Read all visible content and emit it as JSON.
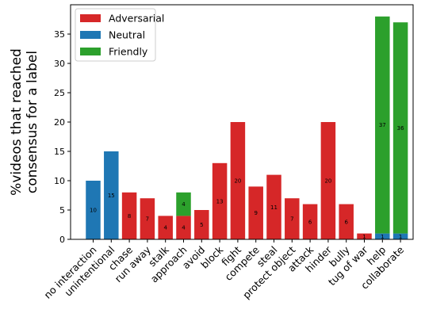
{
  "chart_data": {
    "type": "bar",
    "stacked": true,
    "title": "",
    "xlabel": "",
    "ylabel": "%videos that reached consensus for a label",
    "ylabel_lines": [
      "%videos that reached",
      "consensus for a label"
    ],
    "ylim": [
      0,
      40
    ],
    "yticks": [
      0,
      5,
      10,
      15,
      20,
      25,
      30,
      35
    ],
    "grid": false,
    "legend_position": "top-left",
    "categories": [
      "no interaction",
      "unintentional",
      "chase",
      "run away",
      "stalk",
      "approach",
      "avoid",
      "block",
      "fight",
      "compete",
      "steal",
      "protect object",
      "attack",
      "hinder",
      "bully",
      "tug of war",
      "help",
      "collaborate"
    ],
    "series": [
      {
        "name": "Adversarial",
        "color": "#d62728",
        "values": [
          0,
          0,
          8,
          7,
          4,
          4,
          5,
          13,
          20,
          9,
          11,
          7,
          6,
          20,
          6,
          1,
          0,
          0
        ],
        "labels": [
          "",
          "",
          "8",
          "7",
          "4",
          "4",
          "5",
          "13",
          "20",
          "9",
          "11",
          "7",
          "6",
          "20",
          "6",
          "1",
          "",
          ""
        ]
      },
      {
        "name": "Neutral",
        "color": "#1f77b4",
        "values": [
          10,
          15,
          0,
          0,
          0,
          0,
          0,
          0,
          0,
          0,
          0,
          0,
          0,
          0,
          0,
          0,
          1,
          1
        ],
        "labels": [
          "10",
          "15",
          "",
          "",
          "",
          "",
          "",
          "",
          "",
          "",
          "",
          "",
          "",
          "",
          "",
          "",
          "1",
          "1"
        ]
      },
      {
        "name": "Friendly",
        "color": "#2ca02c",
        "values": [
          0,
          0,
          0,
          0,
          0,
          4,
          0,
          0,
          0,
          0,
          0,
          0,
          0,
          0,
          0,
          0,
          37,
          36
        ],
        "labels": [
          "",
          "",
          "",
          "",
          "",
          "4",
          "",
          "",
          "",
          "",
          "",
          "",
          "",
          "",
          "",
          "",
          "37",
          "36"
        ]
      }
    ]
  }
}
